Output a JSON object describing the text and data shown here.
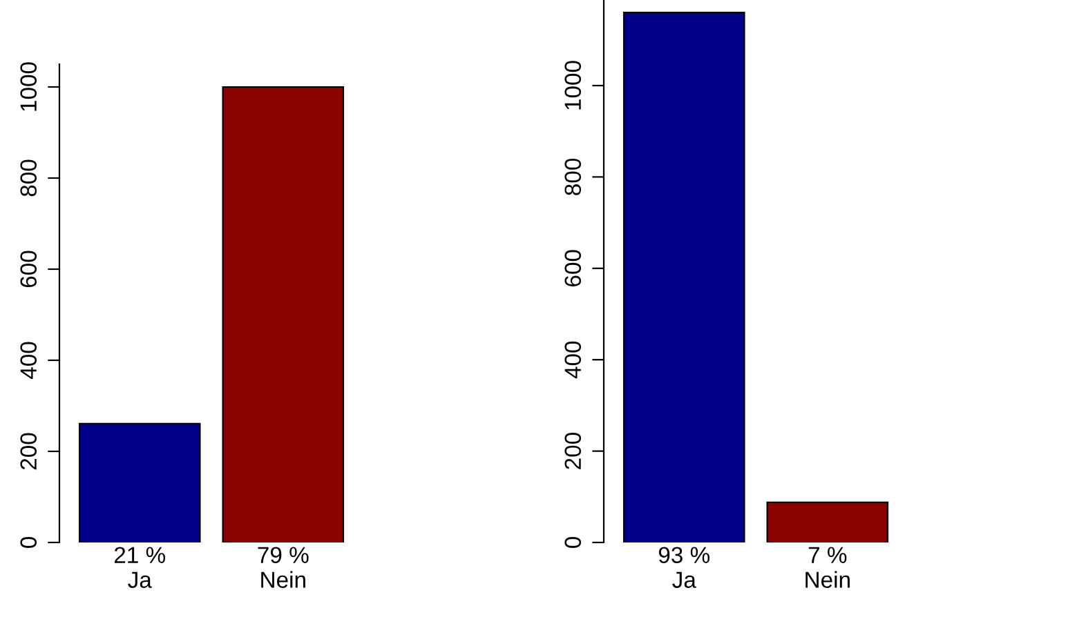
{
  "chart_data": [
    {
      "type": "bar",
      "categories": [
        "21 %\nJa",
        "79 %\nNein"
      ],
      "values": [
        261,
        1000
      ],
      "colors": [
        "#00008b",
        "#8b0000"
      ],
      "ylim": [
        0,
        1050
      ],
      "yticks": [
        0,
        200,
        400,
        600,
        800,
        1000
      ]
    },
    {
      "type": "bar",
      "categories": [
        "93 %\nJa",
        "7 %\nNein"
      ],
      "values": [
        1160,
        88
      ],
      "colors": [
        "#00008b",
        "#8b0000"
      ],
      "ylim": [
        0,
        1190
      ],
      "yticks": [
        0,
        200,
        400,
        600,
        800,
        1000
      ]
    }
  ]
}
